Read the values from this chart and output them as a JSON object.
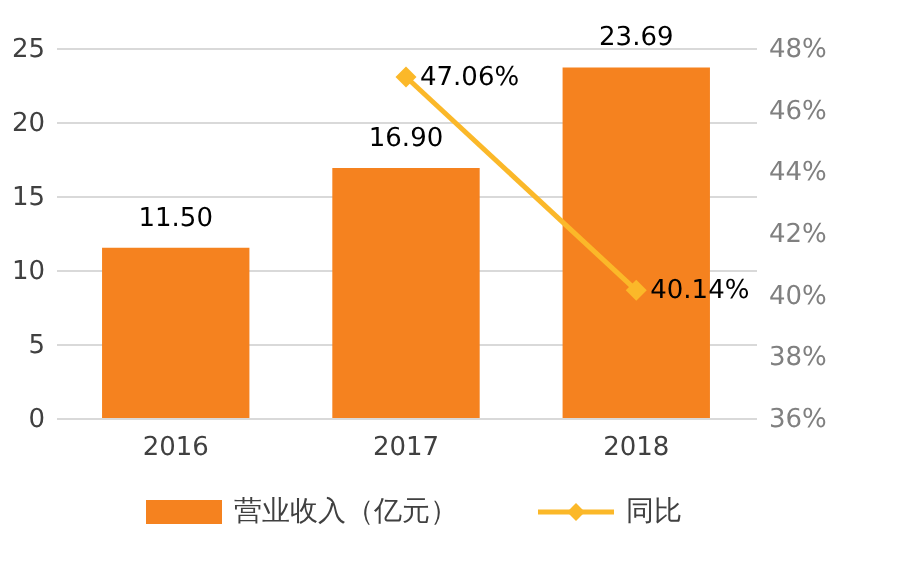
{
  "chart_data": {
    "type": "bar",
    "categories": [
      "2016",
      "2017",
      "2018"
    ],
    "series": [
      {
        "name": "营业收入（亿元）",
        "color": "#f5821f",
        "values": [
          11.5,
          16.9,
          23.69
        ],
        "value_labels": [
          "11.50",
          "16.90",
          "23.69"
        ]
      },
      {
        "name": "同比",
        "type": "line",
        "axis": "y2",
        "color": "#fbb829",
        "marker": "diamond",
        "values": [
          null,
          47.06,
          40.14
        ],
        "value_labels": [
          null,
          "47.06%",
          "40.14%"
        ]
      }
    ],
    "ylim": [
      0,
      25
    ],
    "yticks": [
      0,
      5,
      10,
      15,
      20,
      25
    ],
    "y2lim": [
      36,
      48
    ],
    "y2ticks": [
      {
        "value": 36,
        "label": "36%"
      },
      {
        "value": 38,
        "label": "38%"
      },
      {
        "value": 40,
        "label": "40%"
      },
      {
        "value": 42,
        "label": "42%"
      },
      {
        "value": 44,
        "label": "44%"
      },
      {
        "value": 46,
        "label": "46%"
      },
      {
        "value": 48,
        "label": "48%"
      }
    ],
    "grid": "y",
    "legend": "bottom"
  }
}
